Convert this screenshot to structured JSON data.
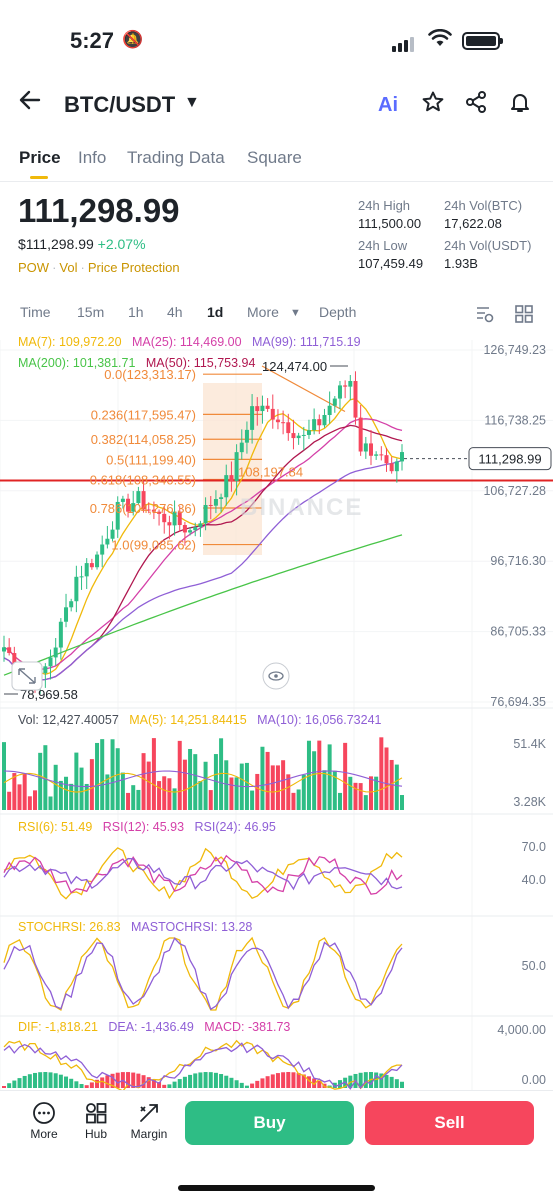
{
  "status_bar": {
    "time": "5:27"
  },
  "header": {
    "pair": "BTC/USDT",
    "ai_label": "Ai"
  },
  "tabs": [
    "Price",
    "Info",
    "Trading Data",
    "Square"
  ],
  "ticker": {
    "last_price": "111,298.99",
    "usd_price": "$111,298.99",
    "change_pct": "+2.07%",
    "tags": [
      "POW",
      "Vol",
      "Price Protection"
    ],
    "high_label": "24h High",
    "high_value": "111,500.00",
    "volbtc_label": "24h Vol(BTC)",
    "volbtc_value": "17,622.08",
    "low_label": "24h Low",
    "low_value": "107,459.49",
    "volusdt_label": "24h Vol(USDT)",
    "volusdt_value": "1.93B"
  },
  "timeframes": {
    "items": [
      "Time",
      "15m",
      "1h",
      "4h",
      "1d",
      "More",
      "Depth"
    ],
    "active": "1d"
  },
  "ma_legend": {
    "ma7": "MA(7): 109,972.20",
    "ma25": "MA(25): 114,469.00",
    "ma99": "MA(99): 111,715.19",
    "ma200": "MA(200): 101,381.71",
    "ma50": "MA(50): 115,753.94"
  },
  "colors": {
    "up": "#2ebd85",
    "down": "#f6465d",
    "ma7": "#f0b90b",
    "ma25": "#d440a8",
    "ma99": "#8f5fd6",
    "ma200": "#48c448",
    "ma50": "#b0174f",
    "fib": "#f08a3a",
    "accent": "#f0b90b"
  },
  "chart_data": {
    "type": "candlestick",
    "price_axis": [
      "126,749.23",
      "116,738.25",
      "106,727.28",
      "96,716.30",
      "86,705.33",
      "76,694.35"
    ],
    "current_price_label": "111,298.99",
    "high_marker": "124,474.00",
    "low_marker": "78,969.58",
    "horizontal_line_label": "108,197.84",
    "watermark": "BINANCE",
    "fib_levels": [
      {
        "label": "0.0(123,313.17)",
        "value": 123313.17
      },
      {
        "label": "0.236(117,595.47)",
        "value": 117595.47
      },
      {
        "label": "0.382(114,058.25)",
        "value": 114058.25
      },
      {
        "label": "0.5(111,199.40)",
        "value": 111199.4
      },
      {
        "label": "0.618(108,340.55)",
        "value": 108340.55
      },
      {
        "label": "0.786(104,276.36)",
        "value": 104276.36
      },
      {
        "label": "1.0(99,085.62)",
        "value": 99085.62
      }
    ],
    "ylim": [
      76694.35,
      126749.23
    ],
    "volume": {
      "legend": "Vol: 12,427.40057",
      "ma5": "MA(5): 14,251.84415",
      "ma10": "MA(10): 16,056.73241",
      "axis": [
        "51.4K",
        "3.28K"
      ]
    },
    "rsi": {
      "rsi6": "RSI(6): 51.49",
      "rsi12": "RSI(12): 45.93",
      "rsi24": "RSI(24): 46.95",
      "axis": [
        "70.0",
        "40.0"
      ]
    },
    "stochrsi": {
      "stoch": "STOCHRSI: 26.83",
      "mastoch": "MASTOCHRSI: 13.28",
      "axis": [
        "50.0"
      ]
    },
    "macd": {
      "dif": "DIF: -1,818.21",
      "dea": "DEA: -1,436.49",
      "macd": "MACD: -381.73",
      "axis": [
        "4,000.00",
        "0.00"
      ]
    }
  },
  "bottom_bar": {
    "more": "More",
    "hub": "Hub",
    "margin": "Margin",
    "buy": "Buy",
    "sell": "Sell"
  }
}
